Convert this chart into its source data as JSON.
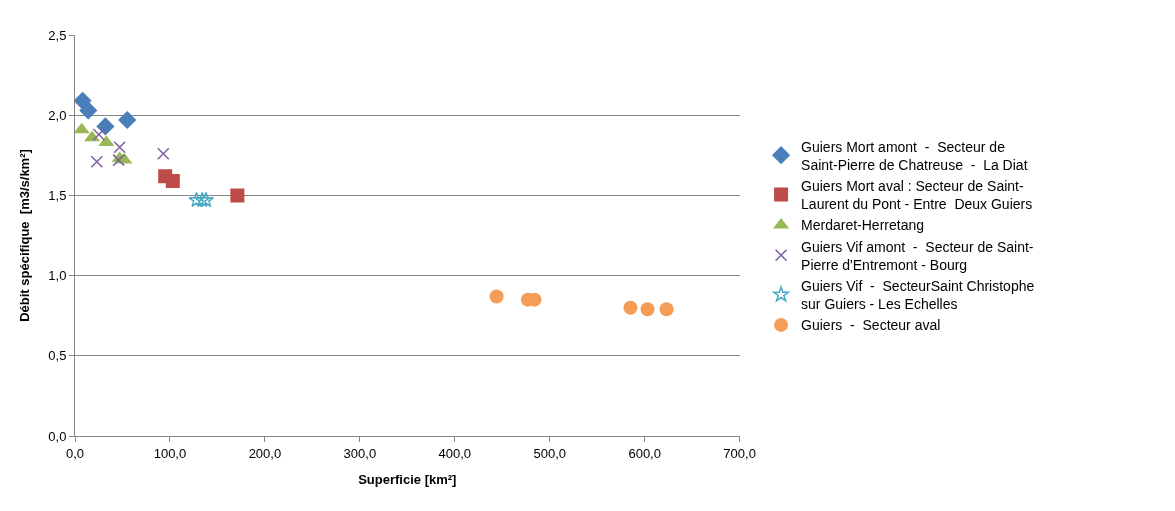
{
  "chart_data": {
    "type": "scatter",
    "xlabel": "Superficie [km²]",
    "ylabel": "Débit spécifique  [m3/s/km²]",
    "xlim": [
      0,
      700
    ],
    "xticks": [
      {
        "value": 0,
        "label": "0,0"
      },
      {
        "value": 100,
        "label": "100,0"
      },
      {
        "value": 200,
        "label": "200,0"
      },
      {
        "value": 300,
        "label": "300,0"
      },
      {
        "value": 400,
        "label": "400,0"
      },
      {
        "value": 500,
        "label": "500,0"
      },
      {
        "value": 600,
        "label": "600,0"
      },
      {
        "value": 700,
        "label": "700,0"
      }
    ],
    "ylim": [
      0,
      2.5
    ],
    "yticks": [
      {
        "value": 0,
        "label": "0,0"
      },
      {
        "value": 0.5,
        "label": "0,5"
      },
      {
        "value": 1,
        "label": "1,0"
      },
      {
        "value": 1.5,
        "label": "1,5"
      },
      {
        "value": 2,
        "label": "2,0"
      },
      {
        "value": 2.5,
        "label": "2,5"
      }
    ],
    "grid": "y",
    "legend": "right",
    "series": [
      {
        "name": "Guiers Mort amont  -  Secteur de Saint-Pierre de Chatreuse  -  La Diat",
        "color": "#4a7ebb",
        "marker": "diamond",
        "x": [
          8,
          14,
          32,
          55
        ],
        "values": [
          2.09,
          2.03,
          1.93,
          1.97
        ]
      },
      {
        "name": "Guiers Mort aval : Secteur de Saint-Laurent du Pont - Entre  Deux Guiers",
        "color": "#be4b48",
        "marker": "square",
        "x": [
          95,
          103,
          171
        ],
        "values": [
          1.62,
          1.59,
          1.5
        ]
      },
      {
        "name": "Merdaret-Herretang",
        "color": "#98b954",
        "marker": "triangle",
        "x": [
          7,
          18,
          33,
          47,
          52
        ],
        "values": [
          1.91,
          1.86,
          1.83,
          1.73,
          1.72
        ]
      },
      {
        "name": "Guiers Vif amont  -  Secteur de Saint-Pierre d'Entremont - Bourg",
        "color": "#7d60a0",
        "marker": "cross",
        "x": [
          25,
          23,
          47,
          46,
          93
        ],
        "values": [
          1.88,
          1.71,
          1.8,
          1.72,
          1.76
        ]
      },
      {
        "name": "Guiers Vif  -  SecteurSaint Christophe sur Guiers - Les Echelles",
        "color": "#46aac5",
        "marker": "star",
        "x": [
          128,
          134,
          138
        ],
        "values": [
          1.47,
          1.47,
          1.47
        ]
      },
      {
        "name": "Guiers  -  Secteur aval",
        "color": "#f59d56",
        "marker": "circle",
        "x": [
          444,
          477,
          484,
          585,
          603,
          623
        ],
        "values": [
          0.87,
          0.85,
          0.85,
          0.8,
          0.79,
          0.79
        ]
      }
    ]
  }
}
